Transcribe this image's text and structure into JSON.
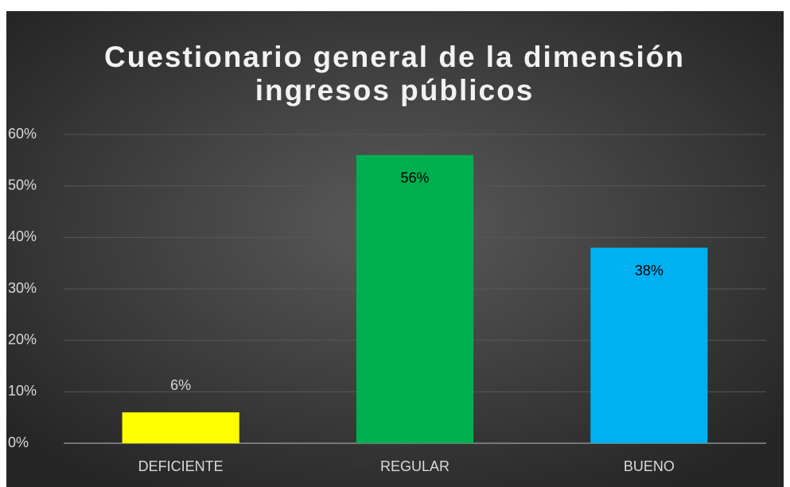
{
  "chart_data": {
    "type": "bar",
    "title": [
      "Cuestionario general de la dimensión",
      "ingresos públicos"
    ],
    "categories": [
      "DEFICIENTE",
      "REGULAR",
      "BUENO"
    ],
    "values": [
      6,
      56,
      38
    ],
    "value_labels": [
      "6%",
      "56%",
      "38%"
    ],
    "colors": [
      "#ffff00",
      "#00b050",
      "#00b0f0"
    ],
    "ylim": [
      0,
      60
    ],
    "yticks": [
      {
        "value": 0,
        "label": "0%"
      },
      {
        "value": 10,
        "label": "10%"
      },
      {
        "value": 20,
        "label": "20%"
      },
      {
        "value": 30,
        "label": "30%"
      },
      {
        "value": 40,
        "label": "40%"
      },
      {
        "value": 50,
        "label": "50%"
      },
      {
        "value": 60,
        "label": "60%"
      }
    ],
    "grid": true
  }
}
